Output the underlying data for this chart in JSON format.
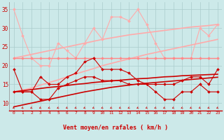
{
  "bg_color": "#cce9e9",
  "grid_color": "#aacccc",
  "line_color_dark": "#cc0000",
  "line_color_light": "#ff9999",
  "xlabel": "Vent moyen/en rafales ( km/h )",
  "tick_color": "#cc0000",
  "x_vals": [
    0,
    1,
    2,
    3,
    4,
    5,
    6,
    7,
    8,
    9,
    10,
    11,
    12,
    13,
    14,
    15,
    16,
    17,
    18,
    19,
    20,
    21,
    22,
    23
  ],
  "ylim": [
    8,
    37
  ],
  "yticks": [
    10,
    15,
    20,
    25,
    30,
    35
  ],
  "series": [
    {
      "y": [
        35,
        28,
        22,
        20,
        20,
        26,
        24,
        22,
        26,
        30,
        27,
        33,
        33,
        32,
        35,
        31,
        26,
        22,
        22,
        22,
        22,
        30,
        28,
        31
      ],
      "color": "#ffaaaa",
      "lw": 0.8,
      "marker": true,
      "ms": 2.0
    },
    {
      "y": [
        22,
        22.5,
        23,
        23.5,
        24,
        24.5,
        25,
        25.5,
        26,
        26.5,
        27,
        27.4,
        27.8,
        28.2,
        28.5,
        28.8,
        29.1,
        29.4,
        29.7,
        30.0,
        30.3,
        30.5,
        30.7,
        31.0
      ],
      "color": "#ffaaaa",
      "lw": 1.2,
      "marker": false,
      "ms": 0
    },
    {
      "y": [
        13,
        13.5,
        14,
        14.8,
        15.5,
        16.2,
        17,
        17.8,
        18.5,
        19.2,
        20,
        20.6,
        21.2,
        21.8,
        22.4,
        23,
        23.5,
        24,
        24.5,
        25,
        25.5,
        26,
        26.5,
        27
      ],
      "color": "#ffaaaa",
      "lw": 1.2,
      "marker": false,
      "ms": 0
    },
    {
      "y": [
        22,
        22,
        22,
        22,
        22,
        22,
        22,
        22,
        22,
        22,
        22,
        22,
        22,
        22,
        22,
        22,
        22,
        22,
        22,
        22,
        22,
        22,
        22,
        22
      ],
      "color": "#ff8888",
      "lw": 1.0,
      "marker": true,
      "ms": 2.0
    },
    {
      "y": [
        19,
        13,
        13,
        17,
        15,
        15,
        17,
        18,
        21,
        22,
        19,
        19,
        19,
        18,
        16,
        15,
        15,
        15,
        15,
        16,
        17,
        17,
        15,
        19
      ],
      "color": "#cc0000",
      "lw": 0.8,
      "marker": true,
      "ms": 2.0
    },
    {
      "y": [
        13,
        13,
        13,
        11,
        11,
        14,
        15,
        16,
        17,
        17,
        16,
        16,
        16,
        15,
        15,
        15,
        13,
        11,
        11,
        13,
        13,
        15,
        13,
        13
      ],
      "color": "#cc0000",
      "lw": 0.8,
      "marker": true,
      "ms": 2.0
    },
    {
      "y": [
        13,
        13.3,
        13.6,
        13.9,
        14.2,
        14.4,
        14.7,
        15.0,
        15.2,
        15.5,
        15.7,
        15.9,
        16.1,
        16.3,
        16.5,
        16.6,
        16.8,
        17.0,
        17.1,
        17.3,
        17.4,
        17.5,
        17.6,
        17.7
      ],
      "color": "#cc0000",
      "lw": 1.2,
      "marker": false,
      "ms": 0
    },
    {
      "y": [
        9,
        9.5,
        10,
        10.5,
        11,
        11.5,
        12,
        12.5,
        13,
        13.4,
        13.8,
        14.2,
        14.5,
        14.8,
        15.1,
        15.3,
        15.5,
        15.7,
        15.9,
        16.1,
        16.3,
        16.5,
        16.7,
        16.9
      ],
      "color": "#cc0000",
      "lw": 1.2,
      "marker": false,
      "ms": 0
    }
  ]
}
